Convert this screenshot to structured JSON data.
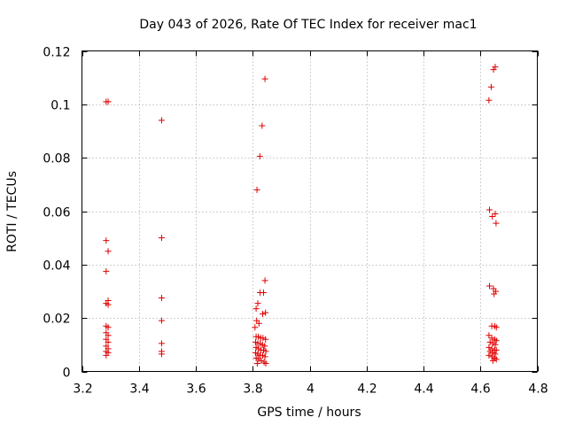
{
  "chart_data": {
    "type": "scatter",
    "title": "Day 043 of 2026, Rate Of TEC Index for receiver mac1",
    "xlabel": "GPS time / hours",
    "ylabel": "ROTI / TECUs",
    "xlim": [
      3.2,
      4.8
    ],
    "ylim": [
      0,
      0.12
    ],
    "xticks": [
      "3.2",
      "3.4",
      "3.6",
      "3.8",
      "4",
      "4.2",
      "4.4",
      "4.6",
      "4.8"
    ],
    "yticks": [
      "0",
      "0.02",
      "0.04",
      "0.06",
      "0.08",
      "0.1",
      "0.12"
    ],
    "grid": true,
    "marker": "+",
    "color": "#e00000",
    "series": [
      {
        "name": "ROTI",
        "points": [
          [
            3.285,
            0.101
          ],
          [
            3.292,
            0.101
          ],
          [
            3.285,
            0.049
          ],
          [
            3.292,
            0.045
          ],
          [
            3.285,
            0.0375
          ],
          [
            3.292,
            0.0265
          ],
          [
            3.285,
            0.0255
          ],
          [
            3.292,
            0.025
          ],
          [
            3.285,
            0.017
          ],
          [
            3.292,
            0.0165
          ],
          [
            3.285,
            0.0145
          ],
          [
            3.292,
            0.0135
          ],
          [
            3.285,
            0.012
          ],
          [
            3.292,
            0.011
          ],
          [
            3.285,
            0.0095
          ],
          [
            3.292,
            0.0085
          ],
          [
            3.285,
            0.0075
          ],
          [
            3.292,
            0.007
          ],
          [
            3.285,
            0.006
          ],
          [
            3.48,
            0.094
          ],
          [
            3.48,
            0.05
          ],
          [
            3.48,
            0.0275
          ],
          [
            3.48,
            0.019
          ],
          [
            3.48,
            0.0105
          ],
          [
            3.48,
            0.0075
          ],
          [
            3.48,
            0.0065
          ],
          [
            3.843,
            0.1095
          ],
          [
            3.833,
            0.092
          ],
          [
            3.825,
            0.0805
          ],
          [
            3.815,
            0.068
          ],
          [
            3.843,
            0.034
          ],
          [
            3.838,
            0.0295
          ],
          [
            3.826,
            0.0295
          ],
          [
            3.818,
            0.0255
          ],
          [
            3.812,
            0.0235
          ],
          [
            3.845,
            0.022
          ],
          [
            3.835,
            0.0215
          ],
          [
            3.814,
            0.019
          ],
          [
            3.822,
            0.018
          ],
          [
            3.808,
            0.0165
          ],
          [
            3.812,
            0.013
          ],
          [
            3.82,
            0.013
          ],
          [
            3.828,
            0.0125
          ],
          [
            3.836,
            0.0125
          ],
          [
            3.845,
            0.012
          ],
          [
            3.81,
            0.011
          ],
          [
            3.818,
            0.0105
          ],
          [
            3.826,
            0.0105
          ],
          [
            3.834,
            0.01
          ],
          [
            3.842,
            0.0095
          ],
          [
            3.812,
            0.009
          ],
          [
            3.82,
            0.0085
          ],
          [
            3.829,
            0.008
          ],
          [
            3.838,
            0.008
          ],
          [
            3.846,
            0.0075
          ],
          [
            3.81,
            0.007
          ],
          [
            3.818,
            0.0065
          ],
          [
            3.826,
            0.006
          ],
          [
            3.835,
            0.006
          ],
          [
            3.843,
            0.0055
          ],
          [
            3.812,
            0.005
          ],
          [
            3.821,
            0.0045
          ],
          [
            3.83,
            0.004
          ],
          [
            3.84,
            0.0035
          ],
          [
            3.846,
            0.003
          ],
          [
            3.816,
            0.003
          ],
          [
            4.652,
            0.114
          ],
          [
            4.646,
            0.113
          ],
          [
            4.638,
            0.1065
          ],
          [
            4.63,
            0.1015
          ],
          [
            4.632,
            0.0605
          ],
          [
            4.652,
            0.059
          ],
          [
            4.642,
            0.058
          ],
          [
            4.655,
            0.0555
          ],
          [
            4.632,
            0.032
          ],
          [
            4.646,
            0.031
          ],
          [
            4.654,
            0.03
          ],
          [
            4.648,
            0.029
          ],
          [
            4.64,
            0.017
          ],
          [
            4.65,
            0.017
          ],
          [
            4.656,
            0.0165
          ],
          [
            4.63,
            0.0135
          ],
          [
            4.64,
            0.0125
          ],
          [
            4.65,
            0.012
          ],
          [
            4.656,
            0.0115
          ],
          [
            4.634,
            0.011
          ],
          [
            4.644,
            0.0105
          ],
          [
            4.652,
            0.01
          ],
          [
            4.63,
            0.009
          ],
          [
            4.64,
            0.0085
          ],
          [
            4.65,
            0.008
          ],
          [
            4.656,
            0.008
          ],
          [
            4.634,
            0.0075
          ],
          [
            4.644,
            0.007
          ],
          [
            4.652,
            0.0065
          ],
          [
            4.63,
            0.006
          ],
          [
            4.64,
            0.0055
          ],
          [
            4.65,
            0.005
          ],
          [
            4.656,
            0.0045
          ],
          [
            4.644,
            0.004
          ]
        ]
      }
    ]
  }
}
